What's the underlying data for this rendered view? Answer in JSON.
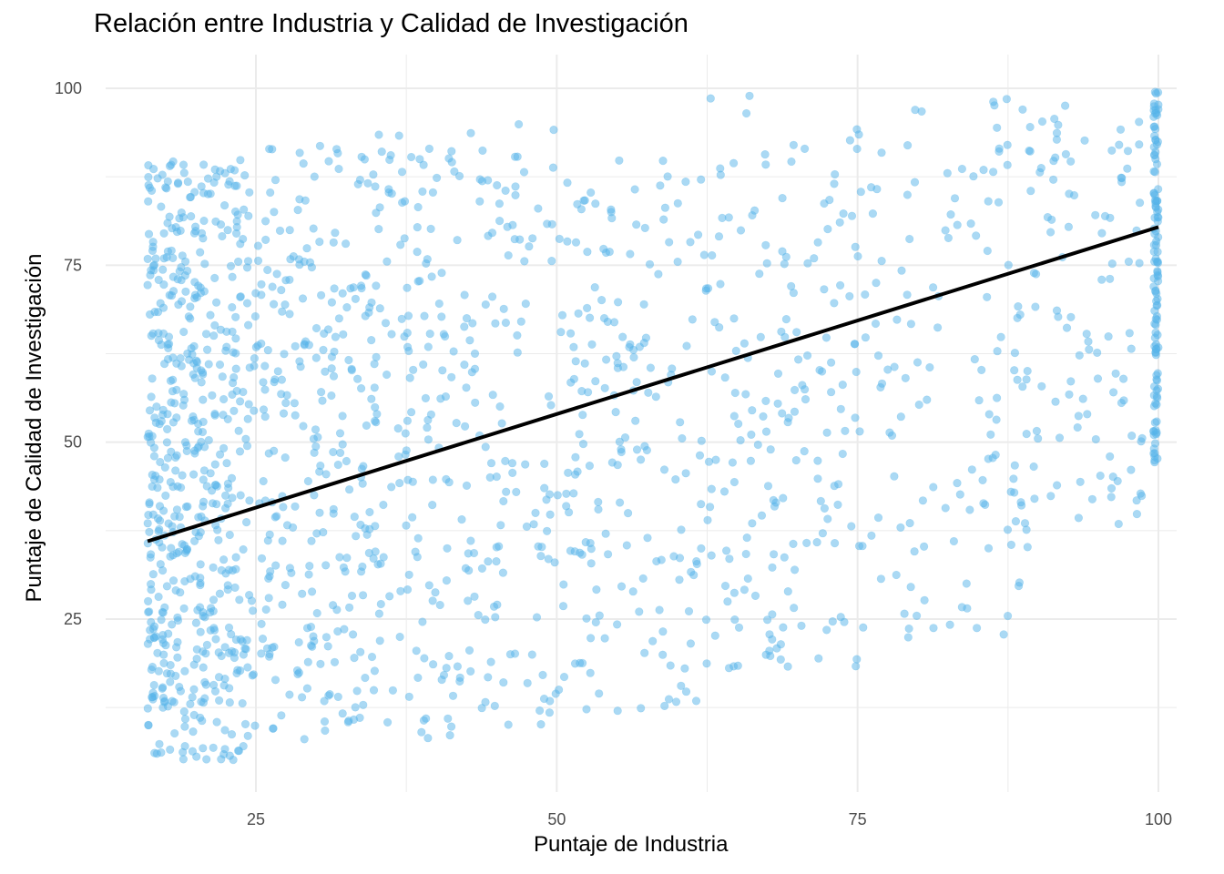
{
  "chart_data": {
    "type": "scatter",
    "title": "Relación entre Industria y Calidad de Investigación",
    "xlabel": "Puntaje de Industria",
    "ylabel": "Puntaje de Calidad de Investigación",
    "xlim": [
      12.5,
      102
    ],
    "ylim": [
      1,
      104
    ],
    "x_ticks": [
      25,
      50,
      75,
      100
    ],
    "y_ticks": [
      25,
      50,
      75,
      100
    ],
    "grid": true,
    "legend": "none",
    "colors": {
      "points": "#56b4e9",
      "trend": "#000000",
      "grid": "#ebebeb",
      "tick_text": "#4d4d4d"
    },
    "point_opacity": 0.5,
    "trend_line": {
      "x": [
        16,
        100
      ],
      "y": [
        36,
        80.4
      ]
    },
    "points_sample_count_note": "",
    "point_clusters": [
      {
        "x_range": [
          16,
          24
        ],
        "y_range": [
          5,
          90
        ],
        "count": 520
      },
      {
        "x_range": [
          24,
          35
        ],
        "y_range": [
          8,
          92
        ],
        "count": 300
      },
      {
        "x_range": [
          35,
          50
        ],
        "y_range": [
          8,
          95
        ],
        "count": 260
      },
      {
        "x_range": [
          50,
          62
        ],
        "y_range": [
          12,
          90
        ],
        "count": 180
      },
      {
        "x_range": [
          62,
          75
        ],
        "y_range": [
          18,
          99
        ],
        "count": 180
      },
      {
        "x_range": [
          75,
          90
        ],
        "y_range": [
          22,
          99
        ],
        "count": 150
      },
      {
        "x_range": [
          90,
          99
        ],
        "y_range": [
          38,
          98
        ],
        "count": 90
      },
      {
        "x_range": [
          99.6,
          100
        ],
        "y_range": [
          47,
          100
        ],
        "count": 120
      }
    ]
  }
}
